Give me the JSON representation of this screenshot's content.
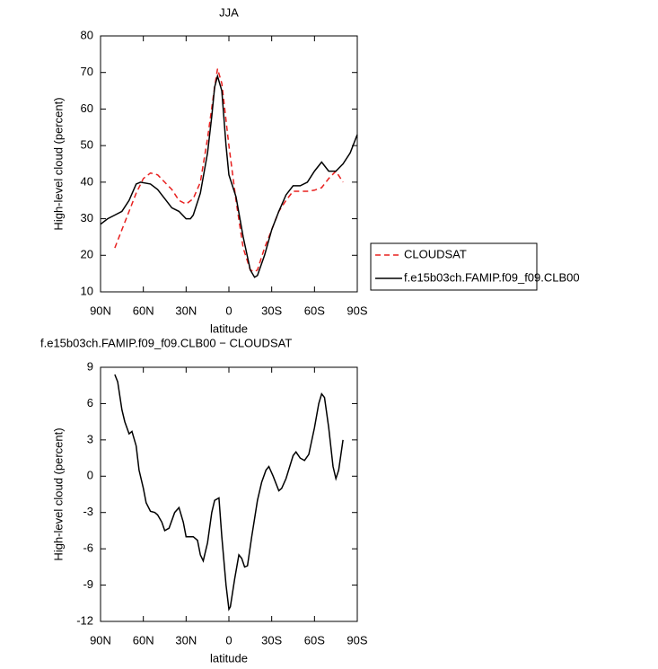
{
  "chart_data": [
    {
      "type": "line",
      "title": "JJA",
      "xlabel": "latitude",
      "ylabel": "High-level cloud (percent)",
      "xlim": [
        90,
        -90
      ],
      "xticks": [
        {
          "value": 90,
          "label": "90N"
        },
        {
          "value": 60,
          "label": "60N"
        },
        {
          "value": 30,
          "label": "30N"
        },
        0,
        {
          "value": -30,
          "label": "30S"
        },
        {
          "value": -60,
          "label": "60S"
        },
        {
          "value": -90,
          "label": "90S"
        }
      ],
      "ylim": [
        10,
        80
      ],
      "yticks": [
        10,
        20,
        30,
        40,
        50,
        60,
        70,
        80
      ],
      "series": [
        {
          "name": "CLOUDSAT",
          "color": "#e8201f",
          "linestyle": "dashed",
          "x": [
            80,
            75,
            70,
            65,
            60,
            55,
            50,
            45,
            40,
            35,
            30,
            25,
            20,
            15,
            10,
            8,
            5,
            0,
            -5,
            -10,
            -15,
            -18,
            -20,
            -25,
            -30,
            -35,
            -40,
            -45,
            -50,
            -55,
            -60,
            -65,
            -70,
            -75,
            -80
          ],
          "values": [
            22,
            27,
            32,
            37,
            41,
            42.5,
            42,
            40,
            38,
            35,
            34,
            35.5,
            40,
            52,
            66,
            71,
            67,
            50,
            35,
            22,
            16,
            15.5,
            16,
            22,
            27,
            32,
            35,
            37.5,
            37.5,
            37.5,
            37.8,
            38.5,
            41,
            43,
            40
          ]
        },
        {
          "name": "f.e15b03ch.FAMIP.f09_f09.CLB00",
          "color": "#000000",
          "linestyle": "solid",
          "x": [
            90,
            85,
            80,
            75,
            70,
            65,
            62,
            55,
            50,
            45,
            40,
            35,
            30,
            27,
            25,
            20,
            15,
            12,
            10,
            8,
            5,
            2,
            0,
            -5,
            -10,
            -15,
            -18,
            -20,
            -25,
            -30,
            -35,
            -40,
            -45,
            -50,
            -55,
            -60,
            -65,
            -70,
            -75,
            -80,
            -85,
            -90
          ],
          "values": [
            28.5,
            30,
            31,
            32,
            35,
            39.5,
            40,
            39.5,
            38,
            35.5,
            33,
            32,
            30,
            30,
            31,
            37,
            48,
            58,
            66,
            69,
            65,
            50,
            42,
            36,
            25,
            16,
            14,
            14.5,
            20,
            27,
            32,
            36.5,
            39,
            39,
            40,
            43,
            45.5,
            43,
            43,
            45,
            48,
            53
          ]
        }
      ]
    },
    {
      "type": "line",
      "title": "f.e15b03ch.FAMIP.f09_f09.CLB00 − CLOUDSAT",
      "xlabel": "latitude",
      "ylabel": "High-level cloud (percent)",
      "xlim": [
        90,
        -90
      ],
      "xticks": [
        {
          "value": 90,
          "label": "90N"
        },
        {
          "value": 60,
          "label": "60N"
        },
        {
          "value": 30,
          "label": "30N"
        },
        0,
        {
          "value": -30,
          "label": "30S"
        },
        {
          "value": -60,
          "label": "60S"
        },
        {
          "value": -90,
          "label": "90S"
        }
      ],
      "ylim": [
        -12,
        9
      ],
      "yticks": [
        -12,
        -9,
        -6,
        -3,
        0,
        3,
        6,
        9
      ],
      "series": [
        {
          "color": "#000000",
          "linestyle": "solid",
          "x": [
            80,
            78,
            75,
            73,
            70,
            68,
            65,
            63,
            60,
            58,
            55,
            52,
            50,
            47,
            45,
            42,
            38,
            35,
            32,
            30,
            25,
            22,
            20,
            18,
            15,
            12,
            10,
            7,
            5,
            2,
            0,
            -1,
            -4,
            -7,
            -9,
            -11,
            -13,
            -16,
            -18,
            -20,
            -23,
            -26,
            -28,
            -31,
            -35,
            -37,
            -40,
            -45,
            -47,
            -50,
            -53,
            -56,
            -60,
            -63,
            -65,
            -67,
            -70,
            -73,
            -75,
            -77,
            -80
          ],
          "values": [
            8.4,
            7.8,
            5.5,
            4.5,
            3.5,
            3.7,
            2.5,
            0.5,
            -1,
            -2.2,
            -2.9,
            -3,
            -3.2,
            -3.8,
            -4.5,
            -4.3,
            -3,
            -2.6,
            -3.8,
            -5,
            -5,
            -5.3,
            -6.5,
            -7,
            -5.5,
            -3,
            -2,
            -1.8,
            -5,
            -9,
            -11,
            -10.8,
            -8.5,
            -6.5,
            -6.8,
            -7.5,
            -7.4,
            -5,
            -3.5,
            -2,
            -0.5,
            0.5,
            0.8,
            0,
            -1.2,
            -1,
            -0.2,
            1.7,
            2,
            1.5,
            1.3,
            1.8,
            4,
            6,
            6.8,
            6.5,
            4,
            0.8,
            -0.2,
            0.5,
            3
          ]
        }
      ]
    }
  ]
}
